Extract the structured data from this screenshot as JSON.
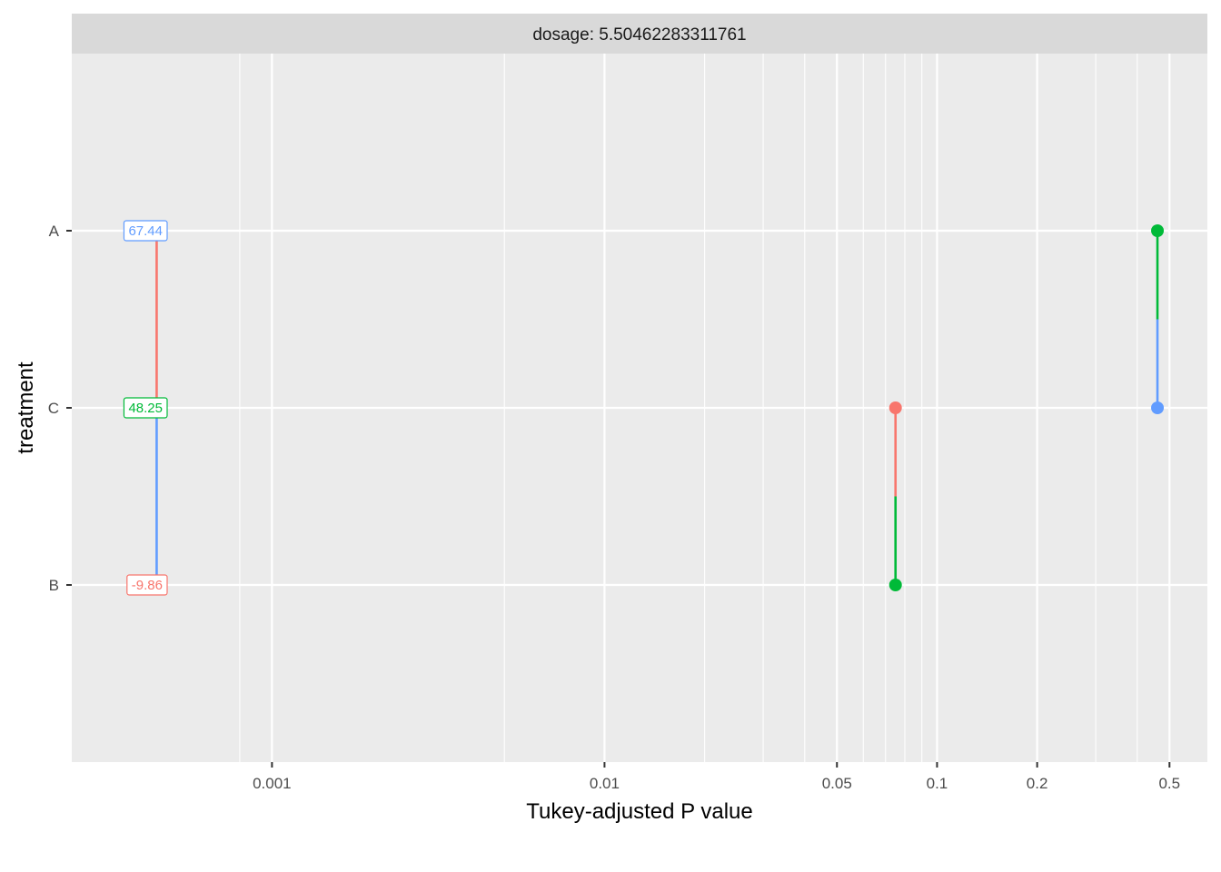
{
  "chart_data": {
    "type": "scatter",
    "title": "",
    "facet_label": "dosage: 5.50462283311761",
    "xlabel": "Tukey-adjusted P value",
    "ylabel": "treatment",
    "x_scale": "log10",
    "xlim": [
      0.00025,
      0.65
    ],
    "x_ticks": [
      0.001,
      0.01,
      0.05,
      0.1,
      0.2,
      0.5
    ],
    "x_tick_labels": [
      "0.001",
      "0.01",
      "0.05",
      "0.1",
      "0.2",
      "0.5"
    ],
    "x_minor_gridlines": [
      0.0008,
      0.005,
      0.02,
      0.03,
      0.04,
      0.06,
      0.07,
      0.08,
      0.09,
      0.3,
      0.4
    ],
    "categories": [
      "B",
      "C",
      "A"
    ],
    "grid": true,
    "legend": "none",
    "colors": {
      "A": "#F8766D",
      "B": "#00BA38",
      "C": "#619CFF"
    },
    "estimates": [
      {
        "treatment": "A",
        "label": "67.44",
        "color": "#619CFF"
      },
      {
        "treatment": "C",
        "label": "48.25",
        "color": "#00BA38"
      },
      {
        "treatment": "B",
        "label": "-9.86",
        "color": "#F8766D"
      }
    ],
    "comparisons": [
      {
        "from": "A",
        "to": "B",
        "p_value": 0.00045,
        "from_color": "#F8766D",
        "to_color": "#619CFF"
      },
      {
        "from": "C",
        "to": "B",
        "p_value": 0.075,
        "from_color": "#F8766D",
        "to_color": "#00BA38"
      },
      {
        "from": "A",
        "to": "C",
        "p_value": 0.46,
        "from_color": "#00BA38",
        "to_color": "#619CFF"
      }
    ]
  }
}
